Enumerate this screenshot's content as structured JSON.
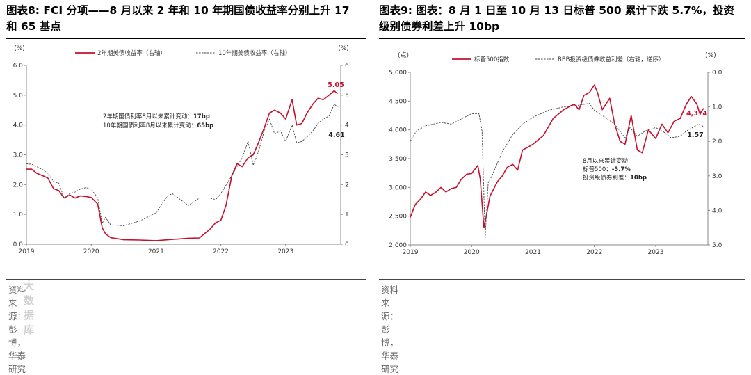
{
  "left": {
    "title": "图表8:  FCI 分项——8 月以来 2 年和 10 年期国债收益率分别上升 17 和 65 基点",
    "title_line1": "图表8:  FCI 分项——8 月以来 2 年和 10 年期国债收益率分别上升 17",
    "title_line2": "和 65 基点",
    "source": "资料来源：彭博，华泰研究",
    "chart_data": {
      "type": "line",
      "left_axis": {
        "unit": "(%)",
        "ylim": [
          0,
          6
        ],
        "ticks": [
          "0.0",
          "1.0",
          "2.0",
          "3.0",
          "4.0",
          "5.0",
          "6.0"
        ]
      },
      "right_axis": {
        "unit": "(%)",
        "ylim": [
          0,
          6
        ],
        "ticks": [
          "0",
          "1",
          "2",
          "3",
          "4",
          "5",
          "6"
        ]
      },
      "x_ticks": [
        "2019",
        "2020",
        "2021",
        "2022",
        "2023"
      ],
      "xlim": [
        2019.0,
        2023.85
      ],
      "series": [
        {
          "name": "2年期美债收益率（右轴）",
          "color": "#c8102e",
          "style": "solid",
          "axis": "right",
          "points": [
            [
              2019.0,
              2.52
            ],
            [
              2019.08,
              2.52
            ],
            [
              2019.16,
              2.38
            ],
            [
              2019.25,
              2.3
            ],
            [
              2019.33,
              2.22
            ],
            [
              2019.42,
              1.86
            ],
            [
              2019.5,
              1.8
            ],
            [
              2019.58,
              1.55
            ],
            [
              2019.67,
              1.65
            ],
            [
              2019.75,
              1.55
            ],
            [
              2019.83,
              1.62
            ],
            [
              2019.92,
              1.6
            ],
            [
              2020.0,
              1.57
            ],
            [
              2020.1,
              1.35
            ],
            [
              2020.17,
              0.55
            ],
            [
              2020.22,
              0.35
            ],
            [
              2020.3,
              0.22
            ],
            [
              2020.5,
              0.15
            ],
            [
              2020.75,
              0.14
            ],
            [
              2021.0,
              0.12
            ],
            [
              2021.25,
              0.16
            ],
            [
              2021.5,
              0.2
            ],
            [
              2021.67,
              0.21
            ],
            [
              2021.83,
              0.5
            ],
            [
              2021.92,
              0.72
            ],
            [
              2022.0,
              0.8
            ],
            [
              2022.08,
              1.3
            ],
            [
              2022.17,
              2.3
            ],
            [
              2022.25,
              2.7
            ],
            [
              2022.33,
              2.6
            ],
            [
              2022.42,
              2.9
            ],
            [
              2022.5,
              3.0
            ],
            [
              2022.58,
              3.4
            ],
            [
              2022.67,
              3.9
            ],
            [
              2022.75,
              4.4
            ],
            [
              2022.83,
              4.5
            ],
            [
              2022.92,
              4.4
            ],
            [
              2023.0,
              4.2
            ],
            [
              2023.1,
              4.85
            ],
            [
              2023.17,
              4.0
            ],
            [
              2023.25,
              4.05
            ],
            [
              2023.33,
              4.4
            ],
            [
              2023.42,
              4.7
            ],
            [
              2023.5,
              4.9
            ],
            [
              2023.58,
              4.85
            ],
            [
              2023.67,
              5.0
            ],
            [
              2023.75,
              5.15
            ],
            [
              2023.8,
              5.05
            ]
          ]
        },
        {
          "name": "10年期美债收益率（右轴）",
          "color": "#444444",
          "style": "dashed",
          "axis": "right",
          "points": [
            [
              2019.0,
              2.7
            ],
            [
              2019.08,
              2.68
            ],
            [
              2019.16,
              2.6
            ],
            [
              2019.25,
              2.5
            ],
            [
              2019.33,
              2.38
            ],
            [
              2019.42,
              2.1
            ],
            [
              2019.5,
              2.05
            ],
            [
              2019.58,
              1.55
            ],
            [
              2019.67,
              1.7
            ],
            [
              2019.75,
              1.75
            ],
            [
              2019.83,
              1.85
            ],
            [
              2019.92,
              1.9
            ],
            [
              2020.0,
              1.85
            ],
            [
              2020.1,
              1.55
            ],
            [
              2020.17,
              0.7
            ],
            [
              2020.22,
              0.9
            ],
            [
              2020.3,
              0.65
            ],
            [
              2020.5,
              0.62
            ],
            [
              2020.75,
              0.78
            ],
            [
              2021.0,
              1.05
            ],
            [
              2021.17,
              1.6
            ],
            [
              2021.25,
              1.7
            ],
            [
              2021.5,
              1.3
            ],
            [
              2021.67,
              1.55
            ],
            [
              2021.83,
              1.55
            ],
            [
              2021.92,
              1.5
            ],
            [
              2022.0,
              1.7
            ],
            [
              2022.17,
              2.3
            ],
            [
              2022.33,
              2.9
            ],
            [
              2022.42,
              3.45
            ],
            [
              2022.5,
              2.65
            ],
            [
              2022.58,
              3.1
            ],
            [
              2022.67,
              3.8
            ],
            [
              2022.75,
              4.2
            ],
            [
              2022.83,
              3.7
            ],
            [
              2022.92,
              3.8
            ],
            [
              2023.0,
              3.45
            ],
            [
              2023.1,
              4.0
            ],
            [
              2023.17,
              3.4
            ],
            [
              2023.25,
              3.45
            ],
            [
              2023.33,
              3.6
            ],
            [
              2023.42,
              3.8
            ],
            [
              2023.5,
              4.05
            ],
            [
              2023.58,
              4.2
            ],
            [
              2023.67,
              4.3
            ],
            [
              2023.75,
              4.7
            ],
            [
              2023.8,
              4.61
            ]
          ]
        }
      ],
      "annotations": [
        {
          "text": "5.05",
          "color": "#c8102e"
        },
        {
          "text": "4.61",
          "color": "#222222"
        }
      ],
      "note": [
        {
          "label": "2年期国债利率8月以来累计变动：",
          "value": "17bp"
        },
        {
          "label": "10年期国债利率8月以来累计变动：",
          "value": "65bp"
        }
      ],
      "legend_position": "top"
    }
  },
  "right": {
    "title": "图表9:  图表：8 月 1 日至 10 月 13 日标普 500 累计下跌 5.7%，投资级别债券利差上升 10bp",
    "title_line1": "图表9:  图表：8 月 1 日至 10 月 13 日标普 500 累计下跌 5.7%，投资",
    "title_line2": "级别债券利差上升 10bp",
    "source": "资料来源：彭博，华泰研究",
    "chart_data": {
      "type": "line",
      "left_axis": {
        "unit": "(点)",
        "ylim": [
          2000,
          5000
        ],
        "ticks": [
          "2,000",
          "2,500",
          "3,000",
          "3,500",
          "4,000",
          "4,500",
          "5,000"
        ]
      },
      "right_axis": {
        "unit": "(%)",
        "ylim": [
          0.0,
          5.0
        ],
        "inverted": true,
        "ticks": [
          "0.0",
          "1.0",
          "2.0",
          "3.0",
          "4.0",
          "5.0"
        ]
      },
      "x_ticks": [
        "2019",
        "2020",
        "2021",
        "2022",
        "2023"
      ],
      "xlim": [
        2019.0,
        2023.85
      ],
      "series": [
        {
          "name": "标普500指数",
          "color": "#c8102e",
          "style": "solid",
          "axis": "left",
          "points": [
            [
              2019.0,
              2480
            ],
            [
              2019.08,
              2700
            ],
            [
              2019.17,
              2800
            ],
            [
              2019.25,
              2920
            ],
            [
              2019.33,
              2860
            ],
            [
              2019.42,
              2920
            ],
            [
              2019.5,
              3000
            ],
            [
              2019.58,
              2920
            ],
            [
              2019.67,
              2980
            ],
            [
              2019.75,
              3000
            ],
            [
              2019.83,
              3140
            ],
            [
              2019.92,
              3230
            ],
            [
              2020.0,
              3240
            ],
            [
              2020.1,
              3380
            ],
            [
              2020.14,
              3150
            ],
            [
              2020.2,
              2300
            ],
            [
              2020.23,
              2450
            ],
            [
              2020.3,
              2850
            ],
            [
              2020.42,
              3100
            ],
            [
              2020.5,
              3200
            ],
            [
              2020.58,
              3350
            ],
            [
              2020.67,
              3400
            ],
            [
              2020.75,
              3300
            ],
            [
              2020.83,
              3650
            ],
            [
              2020.92,
              3700
            ],
            [
              2021.0,
              3750
            ],
            [
              2021.17,
              3900
            ],
            [
              2021.33,
              4200
            ],
            [
              2021.5,
              4350
            ],
            [
              2021.67,
              4450
            ],
            [
              2021.75,
              4350
            ],
            [
              2021.83,
              4600
            ],
            [
              2021.92,
              4650
            ],
            [
              2022.0,
              4780
            ],
            [
              2022.05,
              4650
            ],
            [
              2022.13,
              4350
            ],
            [
              2022.25,
              4550
            ],
            [
              2022.33,
              4100
            ],
            [
              2022.42,
              3800
            ],
            [
              2022.5,
              3750
            ],
            [
              2022.6,
              4250
            ],
            [
              2022.7,
              3650
            ],
            [
              2022.78,
              3600
            ],
            [
              2022.88,
              4000
            ],
            [
              2023.0,
              3850
            ],
            [
              2023.1,
              4100
            ],
            [
              2023.2,
              3950
            ],
            [
              2023.3,
              4150
            ],
            [
              2023.4,
              4200
            ],
            [
              2023.5,
              4450
            ],
            [
              2023.58,
              4580
            ],
            [
              2023.67,
              4450
            ],
            [
              2023.72,
              4280
            ],
            [
              2023.78,
              4374
            ]
          ]
        },
        {
          "name": "BBB投资级债券收益利差（右轴，逆序）",
          "color": "#444444",
          "style": "dashed",
          "axis": "right",
          "points": [
            [
              2019.0,
              2.0
            ],
            [
              2019.1,
              1.7
            ],
            [
              2019.25,
              1.55
            ],
            [
              2019.5,
              1.45
            ],
            [
              2019.67,
              1.5
            ],
            [
              2019.83,
              1.35
            ],
            [
              2020.0,
              1.2
            ],
            [
              2020.12,
              1.2
            ],
            [
              2020.17,
              1.7
            ],
            [
              2020.22,
              4.8
            ],
            [
              2020.27,
              3.2
            ],
            [
              2020.33,
              3.0
            ],
            [
              2020.5,
              2.3
            ],
            [
              2020.67,
              1.8
            ],
            [
              2020.83,
              1.5
            ],
            [
              2021.0,
              1.3
            ],
            [
              2021.25,
              1.1
            ],
            [
              2021.5,
              1.0
            ],
            [
              2021.75,
              0.95
            ],
            [
              2021.92,
              0.9
            ],
            [
              2022.0,
              1.1
            ],
            [
              2022.17,
              1.3
            ],
            [
              2022.33,
              1.5
            ],
            [
              2022.5,
              1.9
            ],
            [
              2022.58,
              1.6
            ],
            [
              2022.7,
              1.85
            ],
            [
              2022.83,
              1.7
            ],
            [
              2023.0,
              1.6
            ],
            [
              2023.15,
              1.75
            ],
            [
              2023.25,
              1.9
            ],
            [
              2023.4,
              1.85
            ],
            [
              2023.5,
              1.7
            ],
            [
              2023.6,
              1.6
            ],
            [
              2023.7,
              1.5
            ],
            [
              2023.78,
              1.57
            ]
          ]
        }
      ],
      "annotations": [
        {
          "text": "4,374",
          "color": "#c8102e"
        },
        {
          "text": "1.57",
          "color": "#222222"
        }
      ],
      "note": [
        {
          "label": "8月以来累计变动",
          "value": ""
        },
        {
          "label": "标普500：",
          "value": "-5.7%"
        },
        {
          "label": "投资级债券利差：",
          "value": "10bp"
        }
      ],
      "legend_position": "top"
    }
  },
  "watermark": "大数据库"
}
